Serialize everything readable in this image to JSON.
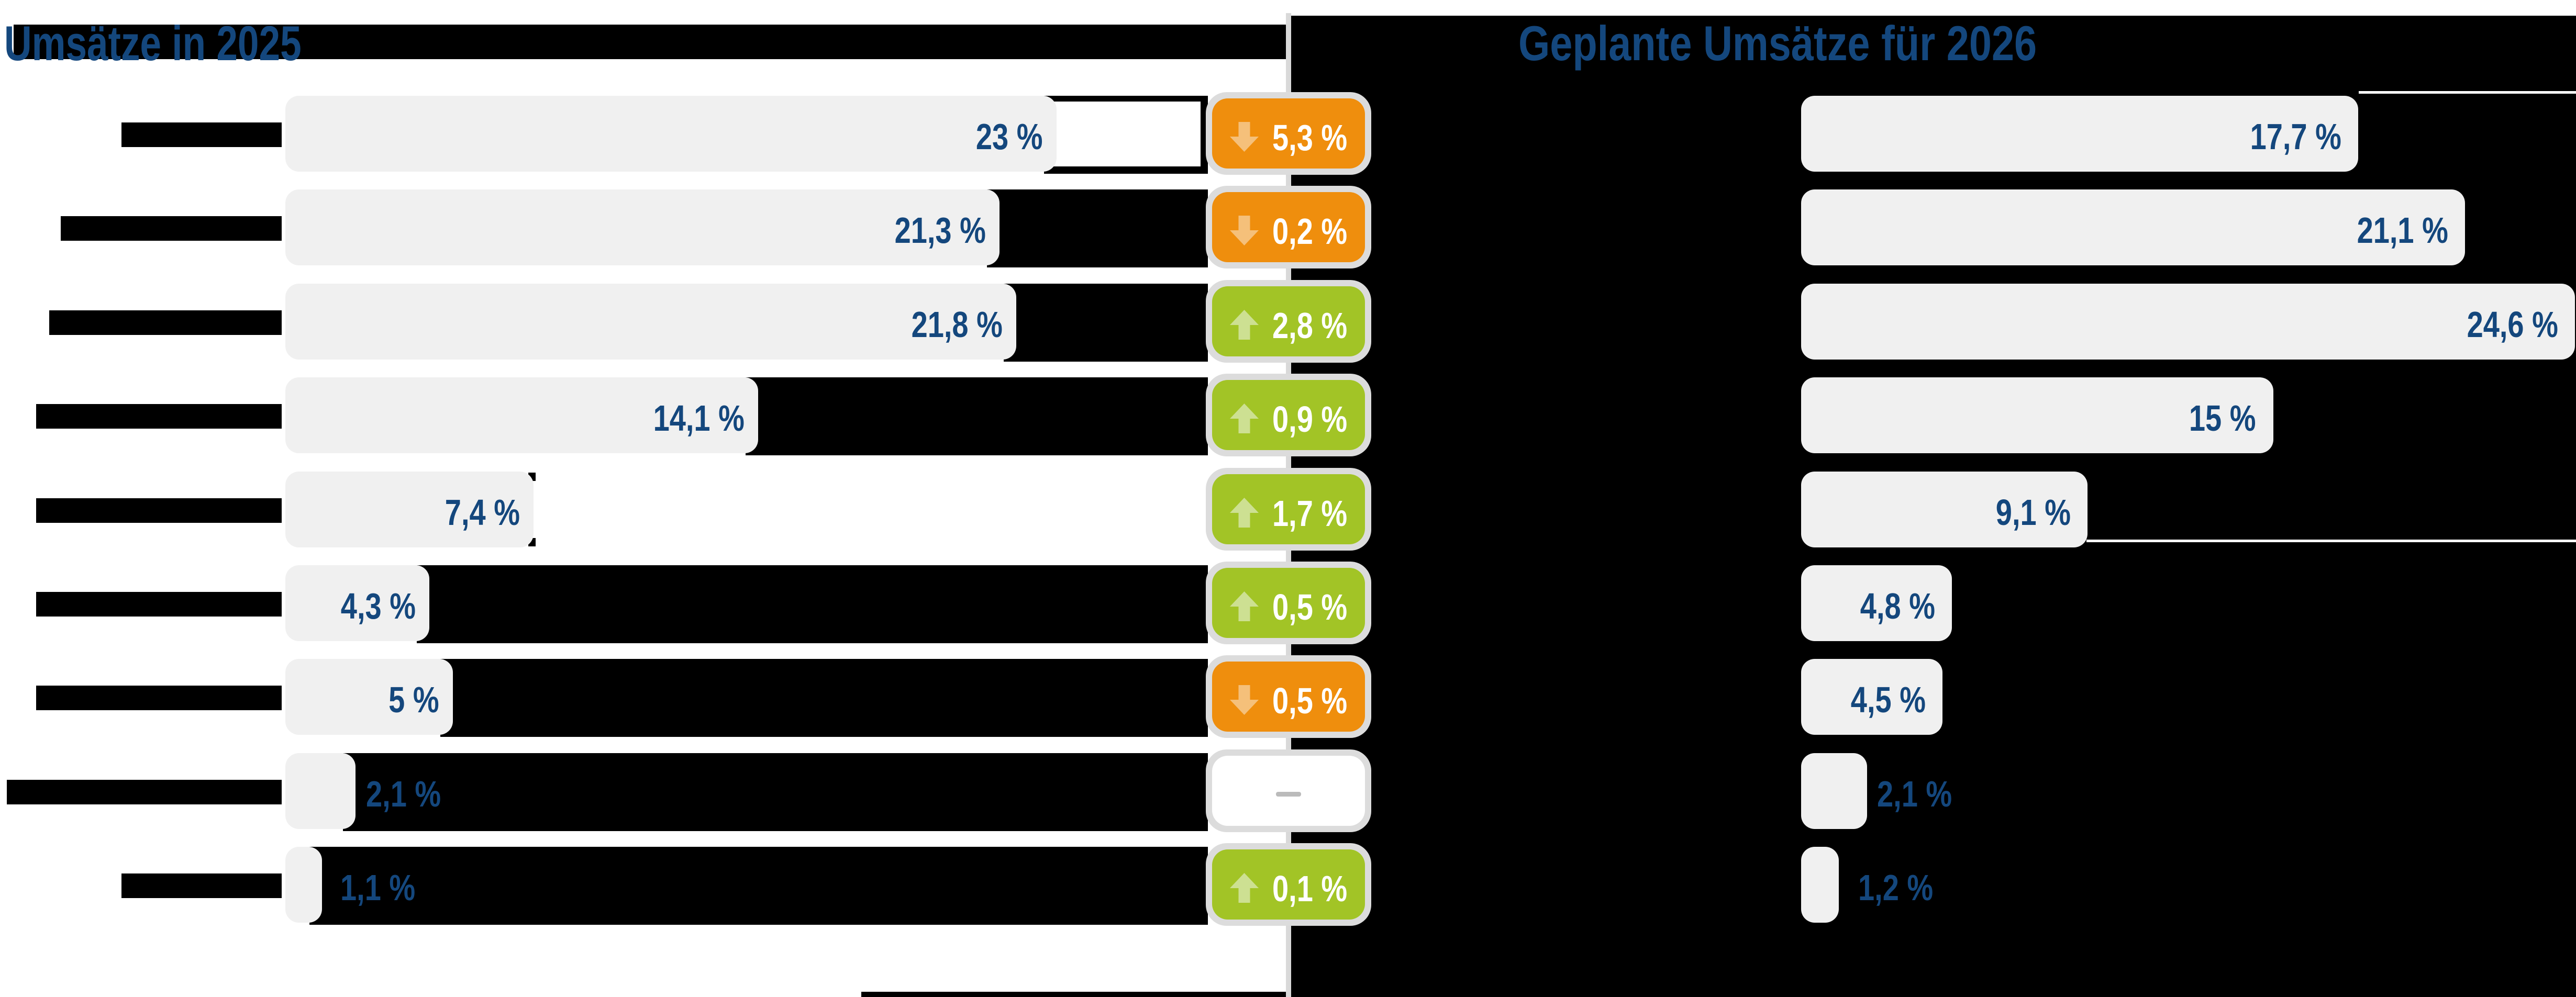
{
  "left_panel": {
    "title": "Umsätze in 2025",
    "title_redaction": true
  },
  "right_panel": {
    "title": "Geplante Umsätze für 2026"
  },
  "middle": {
    "no_change_label": "–"
  },
  "colors": {
    "text_blue": "#14477d",
    "bar_gray": "#f0f0f0",
    "badge_halo_gray": "#dcdcdc",
    "badge_down_orange": "#ef8e0d",
    "badge_down_arrow": "#f5c07a",
    "badge_up_green": "#a2c426",
    "badge_up_arrow": "#cde092",
    "badge_none_dash": "#bbbbbb",
    "redaction_black": "#000000",
    "background_white": "#ffffff"
  },
  "chart_data": {
    "type": "bar",
    "orientation": "horizontal",
    "unit": "%",
    "title_left": "Umsätze in 2025",
    "title_right": "Geplante Umsätze für 2026",
    "note": "category labels are redacted with black boxes in the source image",
    "categories": [
      "",
      "",
      "",
      "",
      "",
      "",
      "",
      "",
      ""
    ],
    "series": [
      {
        "name": "Umsätze in 2025",
        "values": [
          23,
          21.3,
          21.8,
          14.1,
          7.4,
          4.3,
          5,
          2.1,
          1.1
        ],
        "labels": [
          "23 %",
          "21,3 %",
          "21,8 %",
          "14,1 %",
          "7,4 %",
          "4,3 %",
          "5 %",
          "2,1 %",
          "1,1 %"
        ]
      },
      {
        "name": "Geplante Umsätze für 2026",
        "values": [
          17.7,
          21.1,
          24.6,
          15,
          9.1,
          4.8,
          4.5,
          2.1,
          1.2
        ],
        "labels": [
          "17,7 %",
          "21,1 %",
          "24,6 %",
          "15 %",
          "9,1 %",
          "4,8 %",
          "4,5 %",
          "2,1 %",
          "1,2 %"
        ]
      }
    ],
    "changes": {
      "values": [
        -5.3,
        -0.2,
        2.8,
        0.9,
        1.7,
        0.5,
        -0.5,
        0,
        0.1
      ],
      "labels": [
        "5,3 %",
        "0,2 %",
        "2,8 %",
        "0,9 %",
        "1,7 %",
        "0,5 %",
        "0,5 %",
        "–",
        "0,1 %"
      ],
      "directions": [
        "down",
        "down",
        "up",
        "up",
        "up",
        "up",
        "down",
        "none",
        "up"
      ]
    },
    "xlim_left": [
      0,
      23
    ],
    "xlim_right": [
      0,
      24.6
    ],
    "legend": false,
    "grid": false
  }
}
